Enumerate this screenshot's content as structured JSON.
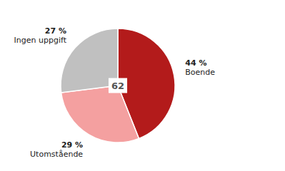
{
  "chart_data": {
    "type": "pie",
    "categories": [
      "Boende",
      "Utomstående",
      "Ingen uppgift"
    ],
    "values": [
      44,
      29,
      27
    ],
    "value_labels": [
      "44 %",
      "29 %",
      "27 %"
    ],
    "colors": [
      "#b31b1b",
      "#f4a0a0",
      "#c0c0c0"
    ],
    "annotations": [
      "62"
    ]
  }
}
